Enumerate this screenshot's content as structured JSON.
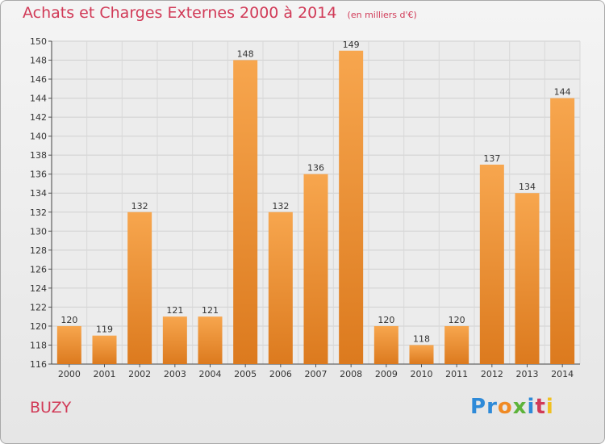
{
  "header": {
    "title": "Achats et Charges Externes 2000 à 2014",
    "unit": "(en milliers d'€)"
  },
  "footer": {
    "commune": "BUZY",
    "logo_letters": [
      "P",
      "r",
      "o",
      "x",
      "i",
      "t",
      "i"
    ],
    "logo_colors": [
      "#2e8ad8",
      "#2e8ad8",
      "#f08a24",
      "#5db33a",
      "#2e8ad8",
      "#d13a57",
      "#f0c020"
    ]
  },
  "colors": {
    "bar_light": "#f7a64e",
    "bar_dark": "#dc7a1e",
    "title": "#d13a57"
  },
  "chart_data": {
    "type": "bar",
    "title": "Achats et Charges Externes 2000 à 2014",
    "subtitle": "(en milliers d'€)",
    "xlabel": "",
    "ylabel": "",
    "categories": [
      "2000",
      "2001",
      "2002",
      "2003",
      "2004",
      "2005",
      "2006",
      "2007",
      "2008",
      "2009",
      "2010",
      "2011",
      "2012",
      "2013",
      "2014"
    ],
    "values": [
      120,
      119,
      132,
      121,
      121,
      148,
      132,
      136,
      149,
      120,
      118,
      120,
      137,
      134,
      144
    ],
    "ylim": [
      116,
      150
    ],
    "yticks": [
      116,
      118,
      120,
      122,
      124,
      126,
      128,
      130,
      132,
      134,
      136,
      138,
      140,
      142,
      144,
      146,
      148,
      150
    ],
    "grid": true
  }
}
